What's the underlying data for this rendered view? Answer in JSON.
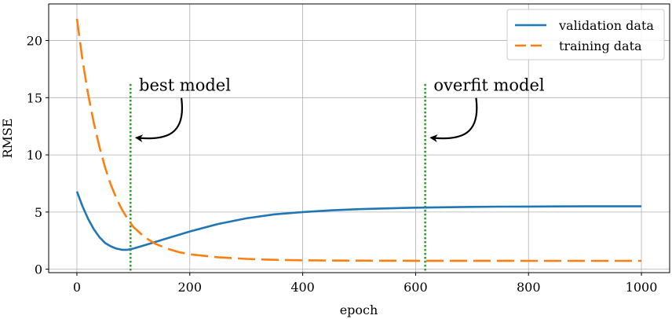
{
  "chart_data": {
    "type": "line",
    "title": "",
    "xlabel": "epoch",
    "ylabel": "RMSE",
    "xlim": [
      -50,
      1050
    ],
    "ylim": [
      -0.3,
      23.2
    ],
    "xticks": [
      0,
      200,
      400,
      600,
      800,
      1000
    ],
    "yticks": [
      0,
      5,
      10,
      15,
      20
    ],
    "grid": true,
    "legend": "top-right",
    "series": [
      {
        "name": "validation data",
        "color": "#1f77b4",
        "style": "solid",
        "x": [
          0,
          10,
          20,
          30,
          40,
          50,
          60,
          70,
          80,
          90,
          100,
          120,
          140,
          160,
          180,
          200,
          250,
          300,
          350,
          400,
          450,
          500,
          550,
          600,
          650,
          700,
          750,
          800,
          850,
          900,
          950,
          1000
        ],
        "y": [
          6.8,
          5.5,
          4.4,
          3.5,
          2.8,
          2.3,
          2.0,
          1.8,
          1.7,
          1.7,
          1.8,
          2.1,
          2.4,
          2.7,
          3.0,
          3.3,
          3.95,
          4.45,
          4.8,
          5.0,
          5.15,
          5.25,
          5.32,
          5.38,
          5.42,
          5.45,
          5.47,
          5.48,
          5.49,
          5.5,
          5.5,
          5.5
        ]
      },
      {
        "name": "training data",
        "color": "#ff7f0e",
        "style": "dashed",
        "x": [
          0,
          10,
          20,
          30,
          40,
          50,
          60,
          70,
          80,
          90,
          100,
          120,
          140,
          160,
          180,
          200,
          250,
          300,
          350,
          400,
          450,
          500,
          600,
          700,
          800,
          900,
          1000
        ],
        "y": [
          21.9,
          18.3,
          15.3,
          12.8,
          10.7,
          8.9,
          7.4,
          6.2,
          5.2,
          4.4,
          3.7,
          2.8,
          2.2,
          1.8,
          1.5,
          1.3,
          1.05,
          0.9,
          0.82,
          0.78,
          0.76,
          0.75,
          0.74,
          0.74,
          0.73,
          0.73,
          0.73
        ]
      }
    ],
    "vlines": [
      {
        "x": 95,
        "y_top": 16.2,
        "color": "#2ca02c",
        "style": "dotted"
      },
      {
        "x": 617,
        "y_top": 16.2,
        "color": "#2ca02c",
        "style": "dotted"
      }
    ],
    "annotations": [
      {
        "label": "best model",
        "x": 110,
        "y": 15.8,
        "arrow_to": [
          100,
          11.5
        ]
      },
      {
        "label": "overfit model",
        "x": 632,
        "y": 15.8,
        "arrow_to": [
          622,
          11.5
        ]
      }
    ]
  }
}
